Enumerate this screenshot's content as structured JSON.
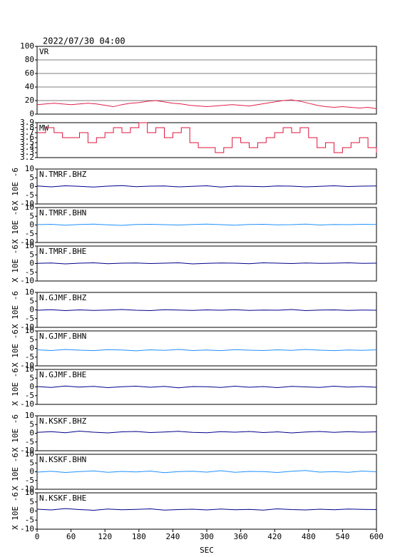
{
  "chart_data": [
    {
      "type": "line",
      "title": "2022/07/30 04:00",
      "label": "VR",
      "color": "#e0204a",
      "grid": true,
      "x": [
        0,
        15,
        30,
        45,
        60,
        75,
        90,
        105,
        120,
        135,
        150,
        165,
        180,
        195,
        210,
        225,
        240,
        255,
        270,
        285,
        300,
        315,
        330,
        345,
        360,
        375,
        390,
        405,
        420,
        435,
        450,
        465,
        480,
        495,
        510,
        525,
        540,
        555,
        570,
        585,
        600
      ],
      "values": [
        14,
        15,
        16,
        15,
        14,
        15,
        16,
        15,
        13,
        11,
        14,
        16,
        17,
        19,
        20,
        18,
        16,
        15,
        13,
        12,
        11,
        12,
        13,
        14,
        13,
        12,
        14,
        16,
        18,
        20,
        21,
        19,
        16,
        13,
        11,
        10,
        11,
        10,
        9,
        10,
        8
      ],
      "xlim": [
        0,
        600
      ],
      "ylim": [
        0,
        100
      ],
      "yticks": [
        0,
        20,
        40,
        60,
        80,
        100
      ]
    },
    {
      "type": "line",
      "label": "MW",
      "color": "#dc143c",
      "step": true,
      "x": [
        0,
        15,
        30,
        45,
        60,
        75,
        90,
        105,
        120,
        135,
        150,
        165,
        180,
        195,
        210,
        225,
        240,
        255,
        270,
        285,
        300,
        315,
        330,
        345,
        360,
        375,
        390,
        405,
        420,
        435,
        450,
        465,
        480,
        495,
        510,
        525,
        540,
        555,
        570,
        585,
        600
      ],
      "values": [
        3.7,
        3.8,
        3.7,
        3.6,
        3.6,
        3.7,
        3.5,
        3.6,
        3.7,
        3.8,
        3.7,
        3.8,
        3.9,
        3.7,
        3.8,
        3.6,
        3.7,
        3.8,
        3.5,
        3.4,
        3.4,
        3.3,
        3.4,
        3.6,
        3.5,
        3.4,
        3.5,
        3.6,
        3.7,
        3.8,
        3.7,
        3.8,
        3.6,
        3.4,
        3.5,
        3.3,
        3.4,
        3.5,
        3.6,
        3.4,
        3.3
      ],
      "xlim": [
        0,
        600
      ],
      "ylim": [
        3.2,
        3.9
      ],
      "yticks": [
        3.2,
        3.3,
        3.4,
        3.5,
        3.6,
        3.7,
        3.8,
        3.9
      ]
    },
    {
      "type": "line",
      "label": "N.TMRF.BHZ",
      "ylabel": "X 10E -6",
      "color": "#00008b",
      "x": [
        0,
        25,
        50,
        75,
        100,
        125,
        150,
        175,
        200,
        225,
        250,
        275,
        300,
        325,
        350,
        375,
        400,
        425,
        450,
        475,
        500,
        525,
        550,
        575,
        600
      ],
      "values": [
        0.3,
        -0.2,
        0.4,
        0.1,
        -0.3,
        0.2,
        0.5,
        -0.1,
        0.2,
        0.3,
        -0.2,
        0.1,
        0.4,
        -0.3,
        0.2,
        0.1,
        -0.1,
        0.3,
        0.2,
        -0.2,
        0.1,
        0.4,
        0.0,
        0.2,
        0.3
      ],
      "xlim": [
        0,
        600
      ],
      "ylim": [
        -10,
        10
      ],
      "yticks": [
        -10,
        -5,
        0,
        5,
        10
      ]
    },
    {
      "type": "line",
      "label": "N.TMRF.BHN",
      "ylabel": "X 10E -6",
      "color": "#1e90ff",
      "x": [
        0,
        25,
        50,
        75,
        100,
        125,
        150,
        175,
        200,
        225,
        250,
        275,
        300,
        325,
        350,
        375,
        400,
        425,
        450,
        475,
        500,
        525,
        550,
        575,
        600
      ],
      "values": [
        0.2,
        0.4,
        -0.1,
        0.3,
        0.5,
        0.1,
        -0.2,
        0.3,
        0.4,
        0.2,
        0.0,
        0.3,
        0.5,
        0.2,
        -0.1,
        0.3,
        0.4,
        0.1,
        0.2,
        0.5,
        0.0,
        0.3,
        0.2,
        0.4,
        0.3
      ],
      "xlim": [
        0,
        600
      ],
      "ylim": [
        -10,
        10
      ],
      "yticks": [
        -10,
        -5,
        0,
        5,
        10
      ]
    },
    {
      "type": "line",
      "label": "N.TMRF.BHE",
      "ylabel": "X 10E -6",
      "color": "#00008b",
      "x": [
        0,
        25,
        50,
        75,
        100,
        125,
        150,
        175,
        200,
        225,
        250,
        275,
        300,
        325,
        350,
        375,
        400,
        425,
        450,
        475,
        500,
        525,
        550,
        575,
        600
      ],
      "values": [
        0.1,
        0.3,
        -0.2,
        0.2,
        0.4,
        -0.1,
        0.2,
        0.3,
        0.0,
        0.2,
        0.4,
        -0.2,
        0.1,
        0.3,
        0.2,
        -0.1,
        0.4,
        0.2,
        0.0,
        0.3,
        0.1,
        0.2,
        0.4,
        0.1,
        0.2
      ],
      "xlim": [
        0,
        600
      ],
      "ylim": [
        -10,
        10
      ],
      "yticks": [
        -10,
        -5,
        0,
        5,
        10
      ]
    },
    {
      "type": "line",
      "label": "N.GJMF.BHZ",
      "ylabel": "X 10E -6",
      "color": "#00008b",
      "x": [
        0,
        25,
        50,
        75,
        100,
        125,
        150,
        175,
        200,
        225,
        250,
        275,
        300,
        325,
        350,
        375,
        400,
        425,
        450,
        475,
        500,
        525,
        550,
        575,
        600
      ],
      "values": [
        -0.2,
        0.1,
        -0.4,
        0.0,
        -0.3,
        -0.1,
        0.2,
        -0.2,
        -0.4,
        0.1,
        -0.1,
        -0.3,
        0.0,
        -0.2,
        0.1,
        -0.3,
        -0.1,
        -0.2,
        0.2,
        -0.4,
        -0.1,
        0.0,
        -0.3,
        -0.1,
        -0.2
      ],
      "xlim": [
        0,
        600
      ],
      "ylim": [
        -10,
        10
      ],
      "yticks": [
        -10,
        -5,
        0,
        5,
        10
      ]
    },
    {
      "type": "line",
      "label": "N.GJMF.BHN",
      "ylabel": "X 10E -6",
      "color": "#1e90ff",
      "x": [
        0,
        25,
        50,
        75,
        100,
        125,
        150,
        175,
        200,
        225,
        250,
        275,
        300,
        325,
        350,
        375,
        400,
        425,
        450,
        475,
        500,
        525,
        550,
        575,
        600
      ],
      "values": [
        -0.8,
        -1.2,
        -0.6,
        -1.0,
        -1.3,
        -0.7,
        -0.9,
        -1.4,
        -0.8,
        -1.1,
        -0.6,
        -1.2,
        -0.9,
        -1.3,
        -0.7,
        -1.0,
        -1.2,
        -0.8,
        -1.1,
        -0.6,
        -1.0,
        -1.3,
        -0.9,
        -1.1,
        -0.8
      ],
      "xlim": [
        0,
        600
      ],
      "ylim": [
        -10,
        10
      ],
      "yticks": [
        -10,
        -5,
        0,
        5,
        10
      ]
    },
    {
      "type": "line",
      "label": "N.GJMF.BHE",
      "ylabel": "X 10E -6",
      "color": "#00008b",
      "x": [
        0,
        25,
        50,
        75,
        100,
        125,
        150,
        175,
        200,
        225,
        250,
        275,
        300,
        325,
        350,
        375,
        400,
        425,
        450,
        475,
        500,
        525,
        550,
        575,
        600
      ],
      "values": [
        0.2,
        -0.3,
        0.5,
        -0.1,
        0.3,
        -0.4,
        0.1,
        0.4,
        -0.2,
        0.3,
        -0.5,
        0.2,
        0.1,
        -0.3,
        0.4,
        -0.2,
        0.2,
        -0.4,
        0.3,
        0.0,
        -0.3,
        0.4,
        -0.1,
        0.2,
        -0.2
      ],
      "xlim": [
        0,
        600
      ],
      "ylim": [
        -10,
        10
      ],
      "yticks": [
        -10,
        -5,
        0,
        5,
        10
      ]
    },
    {
      "type": "line",
      "label": "N.KSKF.BHZ",
      "ylabel": "X 10E -6",
      "color": "#00008b",
      "x": [
        0,
        25,
        50,
        75,
        100,
        125,
        150,
        175,
        200,
        225,
        250,
        275,
        300,
        325,
        350,
        375,
        400,
        425,
        450,
        475,
        500,
        525,
        550,
        575,
        600
      ],
      "values": [
        0.5,
        0.9,
        0.3,
        1.2,
        0.6,
        0.2,
        0.8,
        1.0,
        0.4,
        0.7,
        1.1,
        0.5,
        0.3,
        0.9,
        0.6,
        1.0,
        0.4,
        0.8,
        0.2,
        0.7,
        1.0,
        0.5,
        0.9,
        0.6,
        0.8
      ],
      "xlim": [
        0,
        600
      ],
      "ylim": [
        -10,
        10
      ],
      "yticks": [
        -10,
        -5,
        0,
        5,
        10
      ]
    },
    {
      "type": "line",
      "label": "N.KSKF.BHN",
      "ylabel": "X 10E -6",
      "color": "#1e90ff",
      "x": [
        0,
        25,
        50,
        75,
        100,
        125,
        150,
        175,
        200,
        225,
        250,
        275,
        300,
        325,
        350,
        375,
        400,
        425,
        450,
        475,
        500,
        525,
        550,
        575,
        600
      ],
      "values": [
        -0.2,
        0.3,
        -0.4,
        0.1,
        0.5,
        -0.3,
        0.2,
        -0.1,
        0.4,
        -0.5,
        0.1,
        0.3,
        -0.2,
        0.6,
        -0.3,
        0.2,
        0.1,
        -0.4,
        0.3,
        0.7,
        -0.2,
        0.1,
        -0.3,
        0.4,
        0.0
      ],
      "xlim": [
        0,
        600
      ],
      "ylim": [
        -10,
        10
      ],
      "yticks": [
        -10,
        -5,
        0,
        5,
        10
      ]
    },
    {
      "type": "line",
      "label": "N.KSKF.BHE",
      "ylabel": "X 10E -6",
      "xlabel": "SEC",
      "color": "#00008b",
      "x": [
        0,
        25,
        50,
        75,
        100,
        125,
        150,
        175,
        200,
        225,
        250,
        275,
        300,
        325,
        350,
        375,
        400,
        425,
        450,
        475,
        500,
        525,
        550,
        575,
        600
      ],
      "values": [
        1.0,
        0.6,
        1.3,
        0.8,
        0.4,
        1.1,
        0.7,
        0.9,
        1.2,
        0.5,
        0.8,
        1.0,
        0.6,
        1.1,
        0.7,
        0.9,
        0.5,
        1.2,
        0.8,
        0.6,
        1.0,
        0.7,
        1.1,
        0.9,
        0.8
      ],
      "xlim": [
        0,
        600
      ],
      "ylim": [
        -10,
        10
      ],
      "yticks": [
        -10,
        -5,
        0,
        5,
        10
      ],
      "xticks": [
        0,
        60,
        120,
        180,
        240,
        300,
        360,
        420,
        480,
        540,
        600
      ]
    }
  ]
}
